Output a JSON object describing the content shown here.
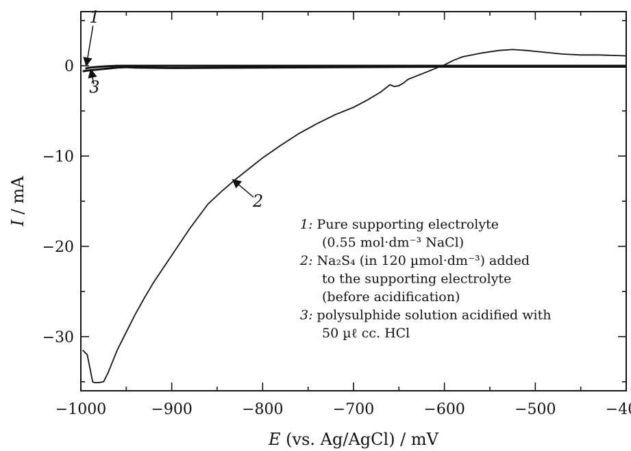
{
  "chart_data": {
    "type": "line",
    "title": "",
    "xlabel": {
      "var": "E",
      "rest": " (vs. Ag/AgCl)  / mV"
    },
    "ylabel": {
      "var": "I",
      "rest": " / mA"
    },
    "xlim": [
      -1000,
      -400
    ],
    "ylim": [
      -36,
      6
    ],
    "xticks": [
      -1000,
      -900,
      -800,
      -700,
      -600,
      -500,
      -400
    ],
    "xtick_labels": [
      "−1000",
      "−900",
      "−800",
      "−700",
      "−600",
      "−500",
      "−400"
    ],
    "yticks": [
      0,
      -10,
      -20,
      -30
    ],
    "ytick_labels": [
      "0",
      "−10",
      "−20",
      "−30"
    ],
    "grid": false,
    "legend_placement": "inside-right",
    "line_color": "#111111",
    "series": [
      {
        "id": "1",
        "x": [
          -995,
          -990,
          -980,
          -970,
          -960,
          -950,
          -900,
          -800,
          -700,
          -600,
          -500,
          -400
        ],
        "y": [
          -0.3,
          -0.2,
          -0.1,
          -0.05,
          0,
          0,
          0,
          0,
          0,
          0,
          0,
          0
        ]
      },
      {
        "id": "2",
        "x": [
          -998,
          -993,
          -990,
          -987,
          -985,
          -980,
          -975,
          -970,
          -960,
          -950,
          -940,
          -930,
          -920,
          -910,
          -900,
          -880,
          -860,
          -845,
          -830,
          -815,
          -800,
          -780,
          -760,
          -740,
          -720,
          -700,
          -685,
          -670,
          -660,
          -655,
          -650,
          -645,
          -640,
          -630,
          -620,
          -610,
          -600,
          -590,
          -580,
          -560,
          -540,
          -525,
          -510,
          -490,
          -470,
          -450,
          -430,
          -400
        ],
        "y": [
          -31.5,
          -32.0,
          -33.5,
          -35.0,
          -35.1,
          -35.1,
          -35.0,
          -34.0,
          -31.5,
          -29.5,
          -27.5,
          -25.7,
          -24.0,
          -22.5,
          -21.0,
          -18.0,
          -15.3,
          -13.9,
          -12.6,
          -11.4,
          -10.2,
          -8.8,
          -7.5,
          -6.4,
          -5.4,
          -4.6,
          -3.8,
          -2.9,
          -2.1,
          -2.3,
          -2.2,
          -1.9,
          -1.5,
          -1.1,
          -0.7,
          -0.3,
          0.1,
          0.6,
          1.0,
          1.4,
          1.7,
          1.8,
          1.7,
          1.5,
          1.3,
          1.2,
          1.2,
          1.1
        ]
      },
      {
        "id": "3",
        "x": [
          -998,
          -990,
          -980,
          -970,
          -960,
          -950,
          -940,
          -900,
          -800,
          -700,
          -600,
          -500,
          -400
        ],
        "y": [
          -0.6,
          -0.5,
          -0.4,
          -0.3,
          -0.2,
          -0.15,
          -0.2,
          -0.25,
          -0.2,
          -0.15,
          -0.1,
          -0.1,
          -0.1
        ]
      }
    ],
    "curve_labels": [
      {
        "text": "1",
        "x": -985,
        "y": 4.8,
        "target_x": -994,
        "target_y": 0.0
      },
      {
        "text": "2",
        "x": -805,
        "y": -15.6,
        "target_x": -833,
        "target_y": -12.6
      },
      {
        "text": "3",
        "x": -985,
        "y": -3.0,
        "target_x": -989,
        "target_y": -0.4
      }
    ],
    "legend": [
      {
        "num": "1:",
        "lines": [
          "Pure supporting electrolyte",
          "(0.55 mol·dm⁻³ NaCl)"
        ]
      },
      {
        "num": "2:",
        "lines": [
          "Na₂S₄ (in 120 µmol·dm⁻³) added",
          "to the supporting electrolyte",
          "(before acidification)"
        ]
      },
      {
        "num": "3:",
        "lines": [
          "polysulphide solution acidified with",
          "50 µℓ cc. HCl"
        ]
      }
    ]
  }
}
